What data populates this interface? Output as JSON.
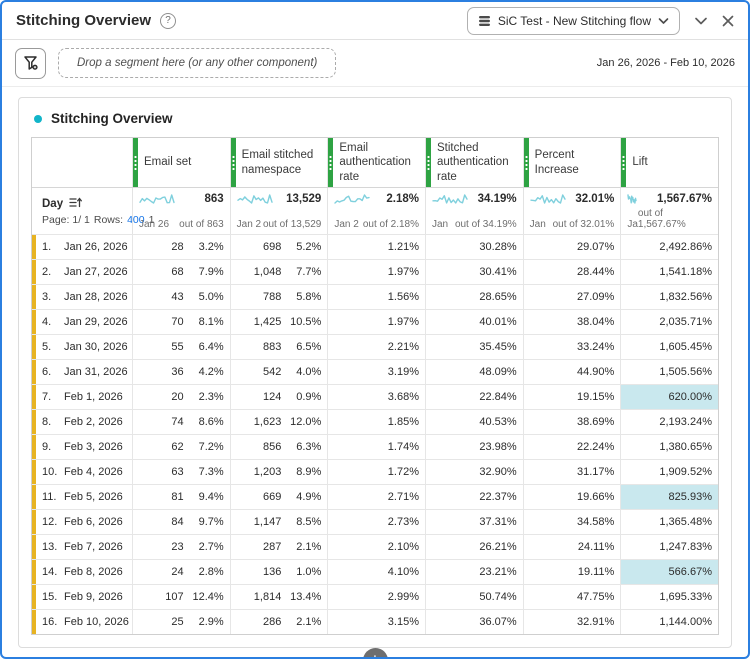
{
  "header": {
    "title": "Stitching Overview",
    "help_glyph": "?",
    "flow_selector_label": "SiC Test - New Stitching flow"
  },
  "filter_bar": {
    "dropzone_text": "Drop a segment here (or any other component)",
    "date_range": "Jan 26, 2026 - Feb 10, 2026"
  },
  "panel": {
    "title": "Stitching Overview"
  },
  "table": {
    "day_header": "Day",
    "pagination": {
      "page_label": "Page: 1/ 1",
      "rows_label": "Rows:",
      "rows_value": "400",
      "rows_suffix": "1"
    },
    "columns": [
      {
        "label": "Email set",
        "type": "count",
        "total": "863",
        "out_of": "out of 863",
        "spark_label": "Jan 26",
        "bar_scale": 1.05
      },
      {
        "label": "Email stitched namespace",
        "type": "count",
        "total": "13,529",
        "out_of": "out of 13,529",
        "spark_label": "Jan 2",
        "bar_scale": 1.35
      },
      {
        "label": "Email authentication rate",
        "type": "rate",
        "total": "2.18%",
        "out_of": "out of 2.18%",
        "spark_label": "Jan 2",
        "bar_scale": 1.2
      },
      {
        "label": "Stitched authentication rate",
        "type": "rate",
        "total": "34.19%",
        "out_of": "out of 34.19%",
        "spark_label": "Jan",
        "bar_scale": 0.95
      },
      {
        "label": "Percent Increase",
        "type": "rate",
        "total": "32.01%",
        "out_of": "out of 32.01%",
        "spark_label": "Jan",
        "bar_scale": 0.95
      },
      {
        "label": "Lift",
        "type": "lift",
        "total": "1,567.67%",
        "out_of": "out of 1,567.67%",
        "spark_label": "Ja",
        "bar_scale": 0
      }
    ],
    "rows": [
      {
        "index": "1.",
        "day": "Jan 26, 2026",
        "cells": [
          {
            "value": "28",
            "pct": "3.2%",
            "bar": 3.2
          },
          {
            "value": "698",
            "pct": "5.2%",
            "bar": 5.2
          },
          {
            "value": "1.21%",
            "bar": 1.21
          },
          {
            "value": "30.28%",
            "bar": 30.28
          },
          {
            "value": "29.07%",
            "bar": 29.07
          },
          {
            "value": "2,492.86%",
            "bar": 0,
            "highlight": false
          }
        ]
      },
      {
        "index": "2.",
        "day": "Jan 27, 2026",
        "cells": [
          {
            "value": "68",
            "pct": "7.9%",
            "bar": 7.9
          },
          {
            "value": "1,048",
            "pct": "7.7%",
            "bar": 7.7
          },
          {
            "value": "1.97%",
            "bar": 1.97
          },
          {
            "value": "30.41%",
            "bar": 30.41
          },
          {
            "value": "28.44%",
            "bar": 28.44
          },
          {
            "value": "1,541.18%",
            "bar": 0,
            "highlight": false
          }
        ]
      },
      {
        "index": "3.",
        "day": "Jan 28, 2026",
        "cells": [
          {
            "value": "43",
            "pct": "5.0%",
            "bar": 5.0
          },
          {
            "value": "788",
            "pct": "5.8%",
            "bar": 5.8
          },
          {
            "value": "1.56%",
            "bar": 1.56
          },
          {
            "value": "28.65%",
            "bar": 28.65
          },
          {
            "value": "27.09%",
            "bar": 27.09
          },
          {
            "value": "1,832.56%",
            "bar": 0,
            "highlight": false
          }
        ]
      },
      {
        "index": "4.",
        "day": "Jan 29, 2026",
        "cells": [
          {
            "value": "70",
            "pct": "8.1%",
            "bar": 8.1
          },
          {
            "value": "1,425",
            "pct": "10.5%",
            "bar": 10.5
          },
          {
            "value": "1.97%",
            "bar": 1.97
          },
          {
            "value": "40.01%",
            "bar": 40.01
          },
          {
            "value": "38.04%",
            "bar": 38.04
          },
          {
            "value": "2,035.71%",
            "bar": 0,
            "highlight": false
          }
        ]
      },
      {
        "index": "5.",
        "day": "Jan 30, 2026",
        "cells": [
          {
            "value": "55",
            "pct": "6.4%",
            "bar": 6.4
          },
          {
            "value": "883",
            "pct": "6.5%",
            "bar": 6.5
          },
          {
            "value": "2.21%",
            "bar": 2.21
          },
          {
            "value": "35.45%",
            "bar": 35.45
          },
          {
            "value": "33.24%",
            "bar": 33.24
          },
          {
            "value": "1,605.45%",
            "bar": 0,
            "highlight": false
          }
        ]
      },
      {
        "index": "6.",
        "day": "Jan 31, 2026",
        "cells": [
          {
            "value": "36",
            "pct": "4.2%",
            "bar": 4.2
          },
          {
            "value": "542",
            "pct": "4.0%",
            "bar": 4.0
          },
          {
            "value": "3.19%",
            "bar": 3.19
          },
          {
            "value": "48.09%",
            "bar": 48.09
          },
          {
            "value": "44.90%",
            "bar": 44.9
          },
          {
            "value": "1,505.56%",
            "bar": 0,
            "highlight": false
          }
        ]
      },
      {
        "index": "7.",
        "day": "Feb 1, 2026",
        "cells": [
          {
            "value": "20",
            "pct": "2.3%",
            "bar": 2.3
          },
          {
            "value": "124",
            "pct": "0.9%",
            "bar": 0.9
          },
          {
            "value": "3.68%",
            "bar": 3.68
          },
          {
            "value": "22.84%",
            "bar": 22.84
          },
          {
            "value": "19.15%",
            "bar": 19.15
          },
          {
            "value": "620.00%",
            "bar": 0,
            "highlight": true
          }
        ]
      },
      {
        "index": "8.",
        "day": "Feb 2, 2026",
        "cells": [
          {
            "value": "74",
            "pct": "8.6%",
            "bar": 8.6
          },
          {
            "value": "1,623",
            "pct": "12.0%",
            "bar": 12.0
          },
          {
            "value": "1.85%",
            "bar": 1.85
          },
          {
            "value": "40.53%",
            "bar": 40.53
          },
          {
            "value": "38.69%",
            "bar": 38.69
          },
          {
            "value": "2,193.24%",
            "bar": 0,
            "highlight": false
          }
        ]
      },
      {
        "index": "9.",
        "day": "Feb 3, 2026",
        "cells": [
          {
            "value": "62",
            "pct": "7.2%",
            "bar": 7.2
          },
          {
            "value": "856",
            "pct": "6.3%",
            "bar": 6.3
          },
          {
            "value": "1.74%",
            "bar": 1.74
          },
          {
            "value": "23.98%",
            "bar": 23.98
          },
          {
            "value": "22.24%",
            "bar": 22.24
          },
          {
            "value": "1,380.65%",
            "bar": 0,
            "highlight": false
          }
        ]
      },
      {
        "index": "10.",
        "day": "Feb 4, 2026",
        "cells": [
          {
            "value": "63",
            "pct": "7.3%",
            "bar": 7.3
          },
          {
            "value": "1,203",
            "pct": "8.9%",
            "bar": 8.9
          },
          {
            "value": "1.72%",
            "bar": 1.72
          },
          {
            "value": "32.90%",
            "bar": 32.9
          },
          {
            "value": "31.17%",
            "bar": 31.17
          },
          {
            "value": "1,909.52%",
            "bar": 0,
            "highlight": false
          }
        ]
      },
      {
        "index": "11.",
        "day": "Feb 5, 2026",
        "cells": [
          {
            "value": "81",
            "pct": "9.4%",
            "bar": 9.4
          },
          {
            "value": "669",
            "pct": "4.9%",
            "bar": 4.9
          },
          {
            "value": "2.71%",
            "bar": 2.71
          },
          {
            "value": "22.37%",
            "bar": 22.37
          },
          {
            "value": "19.66%",
            "bar": 19.66
          },
          {
            "value": "825.93%",
            "bar": 0,
            "highlight": true
          }
        ]
      },
      {
        "index": "12.",
        "day": "Feb 6, 2026",
        "cells": [
          {
            "value": "84",
            "pct": "9.7%",
            "bar": 9.7
          },
          {
            "value": "1,147",
            "pct": "8.5%",
            "bar": 8.5
          },
          {
            "value": "2.73%",
            "bar": 2.73
          },
          {
            "value": "37.31%",
            "bar": 37.31
          },
          {
            "value": "34.58%",
            "bar": 34.58
          },
          {
            "value": "1,365.48%",
            "bar": 0,
            "highlight": false
          }
        ]
      },
      {
        "index": "13.",
        "day": "Feb 7, 2026",
        "cells": [
          {
            "value": "23",
            "pct": "2.7%",
            "bar": 2.7
          },
          {
            "value": "287",
            "pct": "2.1%",
            "bar": 2.1
          },
          {
            "value": "2.10%",
            "bar": 2.1
          },
          {
            "value": "26.21%",
            "bar": 26.21
          },
          {
            "value": "24.11%",
            "bar": 24.11
          },
          {
            "value": "1,247.83%",
            "bar": 0,
            "highlight": false
          }
        ]
      },
      {
        "index": "14.",
        "day": "Feb 8, 2026",
        "cells": [
          {
            "value": "24",
            "pct": "2.8%",
            "bar": 2.8
          },
          {
            "value": "136",
            "pct": "1.0%",
            "bar": 1.0
          },
          {
            "value": "4.10%",
            "bar": 4.1
          },
          {
            "value": "23.21%",
            "bar": 23.21
          },
          {
            "value": "19.11%",
            "bar": 19.11
          },
          {
            "value": "566.67%",
            "bar": 0,
            "highlight": true
          }
        ]
      },
      {
        "index": "15.",
        "day": "Feb 9, 2026",
        "cells": [
          {
            "value": "107",
            "pct": "12.4%",
            "bar": 12.4
          },
          {
            "value": "1,814",
            "pct": "13.4%",
            "bar": 13.4
          },
          {
            "value": "2.99%",
            "bar": 2.99
          },
          {
            "value": "50.74%",
            "bar": 50.74
          },
          {
            "value": "47.75%",
            "bar": 47.75
          },
          {
            "value": "1,695.33%",
            "bar": 0,
            "highlight": false
          }
        ]
      },
      {
        "index": "16.",
        "day": "Feb 10, 2026",
        "cells": [
          {
            "value": "25",
            "pct": "2.9%",
            "bar": 2.9
          },
          {
            "value": "286",
            "pct": "2.1%",
            "bar": 2.1
          },
          {
            "value": "3.15%",
            "bar": 3.15
          },
          {
            "value": "36.07%",
            "bar": 36.07
          },
          {
            "value": "32.91%",
            "bar": 32.91
          },
          {
            "value": "1,144.00%",
            "bar": 0,
            "highlight": false
          }
        ]
      }
    ]
  },
  "footer": {
    "add_glyph": "+"
  },
  "icons": {
    "help-icon": "?",
    "dataset-icon": "stacked-bars",
    "chevron-down-icon": "chevron-down",
    "collapse-chevron-icon": "chevron-down",
    "close-icon": "x",
    "filter-add-icon": "funnel-plus",
    "sort-icon": "lines-with-up-arrow",
    "add-panel-icon": "+"
  },
  "colors": {
    "frame": "#2b7fe0",
    "column_accent": "#2ea343",
    "row_accent": "#e7b322",
    "bar_fill": "#c9e8ee",
    "spark_line": "#7fd0dd",
    "panel_bullet": "#12b5c9",
    "link": "#1473e6"
  }
}
